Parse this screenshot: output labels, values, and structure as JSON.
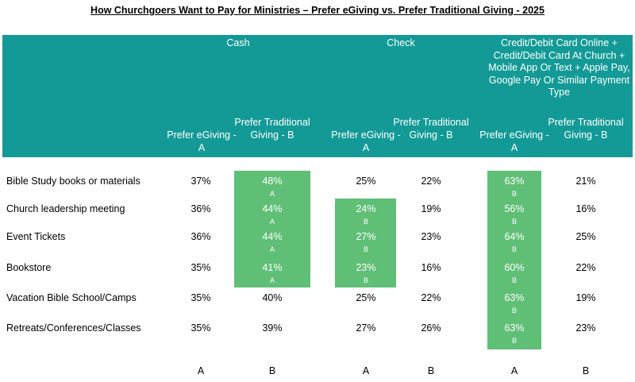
{
  "title": "How Churchgoers Want to Pay for Ministries – Prefer eGiving vs. Prefer Traditional Giving  - 2025",
  "groups": [
    {
      "label": "Cash"
    },
    {
      "label": "Check"
    },
    {
      "label": "Credit/Debit Card Online + Credit/Debit Card At Church + Mobile App Or Text + Apple Pay, Google Pay Or Similar Payment Type"
    }
  ],
  "columns": [
    {
      "label": "Prefer eGiving - A",
      "letter": "A"
    },
    {
      "label": "Prefer Traditional Giving - B",
      "letter": "B"
    },
    {
      "label": "Prefer eGiving - A",
      "letter": "A"
    },
    {
      "label": "Prefer Traditional Giving - B",
      "letter": "B"
    },
    {
      "label": "Prefer eGiving - A",
      "letter": "A"
    },
    {
      "label": "Prefer Traditional Giving - B",
      "letter": "B"
    }
  ],
  "rows": [
    {
      "label": "Bible Study books or materials",
      "values": [
        "37%",
        "48%",
        "25%",
        "22%",
        "63%",
        "21%"
      ],
      "sig": [
        "",
        "A",
        "",
        "",
        "B",
        ""
      ]
    },
    {
      "label": "Church leadership meeting",
      "values": [
        "36%",
        "44%",
        "24%",
        "19%",
        "56%",
        "16%"
      ],
      "sig": [
        "",
        "A",
        "B",
        "",
        "B",
        ""
      ]
    },
    {
      "label": "Event Tickets",
      "values": [
        "36%",
        "44%",
        "27%",
        "23%",
        "64%",
        "25%"
      ],
      "sig": [
        "",
        "A",
        "B",
        "",
        "B",
        ""
      ]
    },
    {
      "label": "Bookstore",
      "values": [
        "35%",
        "41%",
        "23%",
        "16%",
        "60%",
        "22%"
      ],
      "sig": [
        "",
        "A",
        "B",
        "",
        "B",
        ""
      ]
    },
    {
      "label": "Vacation Bible School/Camps",
      "values": [
        "35%",
        "40%",
        "25%",
        "22%",
        "63%",
        "19%"
      ],
      "sig": [
        "",
        "",
        "",
        "",
        "B",
        ""
      ]
    },
    {
      "label": "Retreats/Conferences/Classes",
      "values": [
        "35%",
        "39%",
        "27%",
        "26%",
        "63%",
        "23%"
      ],
      "sig": [
        "",
        "",
        "",
        "",
        "B",
        ""
      ]
    }
  ],
  "colors": {
    "header": "#139a96",
    "highlight": "#5fbf76"
  }
}
